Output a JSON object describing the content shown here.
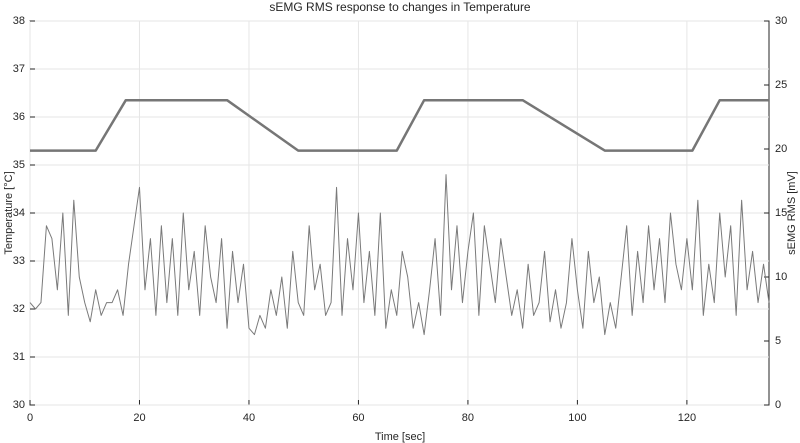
{
  "chart_data": {
    "type": "line",
    "title": "sEMG RMS response to changes in Temperature",
    "xlabel": "Time [sec]",
    "ylabel": "Temperature [°C]",
    "y2label": "sEMG RMS [mV]",
    "xlim": [
      0,
      135
    ],
    "xticks": [
      0,
      20,
      40,
      60,
      80,
      100,
      120
    ],
    "ylim": [
      30,
      38
    ],
    "yticks": [
      30,
      31,
      32,
      33,
      34,
      35,
      36,
      37,
      38
    ],
    "y2lim": [
      0,
      30
    ],
    "y2ticks": [
      0,
      5,
      10,
      15,
      20,
      25,
      30
    ],
    "grid": true,
    "series": [
      {
        "name": "Temperature",
        "color": "#767676",
        "axis": "y",
        "x": [
          0,
          12,
          17.5,
          36,
          49,
          67,
          72,
          90,
          105,
          121,
          126,
          135
        ],
        "values": [
          35.3,
          35.3,
          36.35,
          36.35,
          35.3,
          35.3,
          36.35,
          36.35,
          35.3,
          35.3,
          36.35,
          36.35
        ]
      },
      {
        "name": "sEMG RMS",
        "color": "#7a7a7a",
        "axis": "y2",
        "x": [
          0,
          1,
          2,
          3,
          4,
          5,
          6,
          7,
          8,
          9,
          10,
          11,
          12,
          13,
          14,
          15,
          16,
          17,
          18,
          19,
          20,
          21,
          22,
          23,
          24,
          25,
          26,
          27,
          28,
          29,
          30,
          31,
          32,
          33,
          34,
          35,
          36,
          37,
          38,
          39,
          40,
          41,
          42,
          43,
          44,
          45,
          46,
          47,
          48,
          49,
          50,
          51,
          52,
          53,
          54,
          55,
          56,
          57,
          58,
          59,
          60,
          61,
          62,
          63,
          64,
          65,
          66,
          67,
          68,
          69,
          70,
          71,
          72,
          73,
          74,
          75,
          76,
          77,
          78,
          79,
          80,
          81,
          82,
          83,
          84,
          85,
          86,
          87,
          88,
          89,
          90,
          91,
          92,
          93,
          94,
          95,
          96,
          97,
          98,
          99,
          100,
          101,
          102,
          103,
          104,
          105,
          106,
          107,
          108,
          109,
          110,
          111,
          112,
          113,
          114,
          115,
          116,
          117,
          118,
          119,
          120,
          121,
          122,
          123,
          124,
          125,
          126,
          127,
          128,
          129,
          130,
          131,
          132,
          133,
          134,
          135
        ],
        "values": [
          8,
          7.5,
          8,
          14,
          13,
          9,
          15,
          7,
          16,
          10,
          8,
          6.5,
          9,
          7,
          8,
          8,
          9,
          7,
          11,
          14,
          17,
          9,
          13,
          7,
          14,
          8,
          13,
          7,
          15,
          9,
          12,
          7,
          14,
          10,
          8,
          13,
          6,
          12,
          8,
          11,
          6,
          5.5,
          7,
          6,
          9,
          7,
          10,
          6,
          12,
          8,
          7,
          14,
          9,
          11,
          7,
          8,
          17,
          7,
          13,
          9,
          15,
          8,
          12,
          7,
          15,
          6,
          9,
          7,
          12,
          10,
          6,
          8,
          5.5,
          9,
          13,
          7,
          18,
          9,
          14,
          8,
          12,
          15,
          7,
          14,
          11,
          8,
          13,
          10,
          7,
          9,
          6,
          11,
          7,
          8,
          12,
          6.5,
          9,
          6,
          8,
          13,
          9,
          6,
          12,
          8,
          10,
          5.5,
          8,
          6,
          10,
          14,
          7,
          12,
          8,
          14,
          9,
          13,
          8,
          15,
          11,
          9,
          13,
          9,
          16,
          7,
          11,
          8,
          15,
          10,
          14,
          7,
          16,
          9,
          12,
          8,
          11,
          8
        ]
      }
    ]
  }
}
